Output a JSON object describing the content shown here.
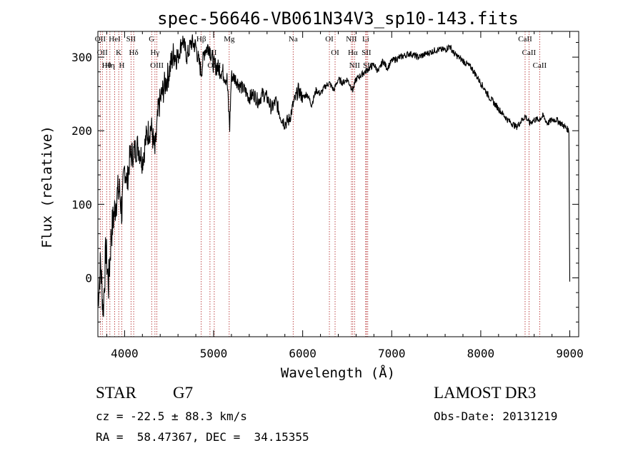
{
  "figure": {
    "title": "spec-56646-VB061N34V3_sp10-143.fits",
    "object_class": "STAR",
    "subclass": "G7",
    "survey": "LAMOST DR3",
    "redshift_line": "cz = -22.5 ± 88.3 km/s",
    "obs_date_line": "Obs-Date: 20131219",
    "coords_line": "RA =  58.47367, DEC =  34.15355"
  },
  "chart_data": {
    "type": "line",
    "title": "spec-56646-VB061N34V3_sp10-143.fits",
    "xlabel": "Wavelength (Å)",
    "ylabel": "Flux (relative)",
    "xlim": [
      3700,
      9100
    ],
    "ylim": [
      -80,
      335
    ],
    "x_ticks": [
      4000,
      5000,
      6000,
      7000,
      8000,
      9000
    ],
    "y_ticks": [
      0,
      100,
      200,
      300
    ],
    "grid": false,
    "series": [
      {
        "color": "#000000",
        "x": [
          3700,
          3730,
          3760,
          3790,
          3820,
          3850,
          3880,
          3910,
          3940,
          3970,
          4000,
          4030,
          4060,
          4100,
          4150,
          4200,
          4250,
          4300,
          4340,
          4380,
          4420,
          4460,
          4500,
          4550,
          4600,
          4650,
          4700,
          4750,
          4800,
          4830,
          4861,
          4900,
          4950,
          5000,
          5050,
          5100,
          5150,
          5180,
          5200,
          5250,
          5300,
          5350,
          5400,
          5450,
          5500,
          5550,
          5600,
          5650,
          5700,
          5750,
          5800,
          5850,
          5893,
          5950,
          6000,
          6050,
          6100,
          6150,
          6200,
          6250,
          6300,
          6350,
          6400,
          6450,
          6500,
          6563,
          6600,
          6650,
          6700,
          6750,
          6800,
          6850,
          6900,
          6950,
          7000,
          7100,
          7200,
          7300,
          7400,
          7500,
          7600,
          7650,
          7700,
          7750,
          7800,
          7900,
          8000,
          8100,
          8200,
          8300,
          8400,
          8500,
          8550,
          8600,
          8650,
          8700,
          8750,
          8800,
          8850,
          8900,
          8950,
          8990,
          9000
        ],
        "values": [
          -30,
          20,
          -45,
          40,
          -10,
          60,
          85,
          110,
          120,
          90,
          150,
          130,
          165,
          170,
          180,
          160,
          195,
          205,
          170,
          230,
          250,
          265,
          280,
          305,
          300,
          325,
          300,
          320,
          315,
          295,
          280,
          310,
          315,
          290,
          285,
          280,
          270,
          205,
          275,
          270,
          260,
          255,
          245,
          250,
          240,
          250,
          245,
          230,
          240,
          220,
          210,
          215,
          235,
          255,
          245,
          250,
          235,
          255,
          250,
          260,
          265,
          255,
          270,
          265,
          270,
          255,
          270,
          275,
          280,
          285,
          290,
          280,
          295,
          285,
          295,
          300,
          305,
          300,
          305,
          310,
          310,
          315,
          305,
          300,
          295,
          285,
          265,
          245,
          230,
          215,
          205,
          220,
          210,
          215,
          215,
          220,
          210,
          215,
          215,
          210,
          205,
          200,
          -5
        ]
      }
    ],
    "lines": [
      {
        "wavelength": 3727,
        "label": "OII"
      },
      {
        "wavelength": 3750,
        "label": "OII"
      },
      {
        "wavelength": 3798,
        "label": "Hθ"
      },
      {
        "wavelength": 3835,
        "label": "Hη"
      },
      {
        "wavelength": 3889,
        "label": "HeI"
      },
      {
        "wavelength": 3934,
        "label": "K"
      },
      {
        "wavelength": 3969,
        "label": "H"
      },
      {
        "wavelength": 4072,
        "label": "SII"
      },
      {
        "wavelength": 4102,
        "label": "Hδ"
      },
      {
        "wavelength": 4304,
        "label": "G"
      },
      {
        "wavelength": 4341,
        "label": "Hγ"
      },
      {
        "wavelength": 4363,
        "label": "OIII"
      },
      {
        "wavelength": 4861,
        "label": "Hβ"
      },
      {
        "wavelength": 4959,
        "label": "OIII"
      },
      {
        "wavelength": 5007,
        "label": "OIII"
      },
      {
        "wavelength": 5175,
        "label": "Mg"
      },
      {
        "wavelength": 5893,
        "label": "Na"
      },
      {
        "wavelength": 6300,
        "label": "OI"
      },
      {
        "wavelength": 6364,
        "label": "OI"
      },
      {
        "wavelength": 6548,
        "label": "NII"
      },
      {
        "wavelength": 6563,
        "label": "Hα"
      },
      {
        "wavelength": 6583,
        "label": "NII"
      },
      {
        "wavelength": 6708,
        "label": "Li"
      },
      {
        "wavelength": 6716,
        "label": "SII"
      },
      {
        "wavelength": 6731,
        "label": "SII"
      },
      {
        "wavelength": 8498,
        "label": "CaII"
      },
      {
        "wavelength": 8542,
        "label": "CaII"
      },
      {
        "wavelength": 8662,
        "label": "CaII"
      }
    ]
  }
}
